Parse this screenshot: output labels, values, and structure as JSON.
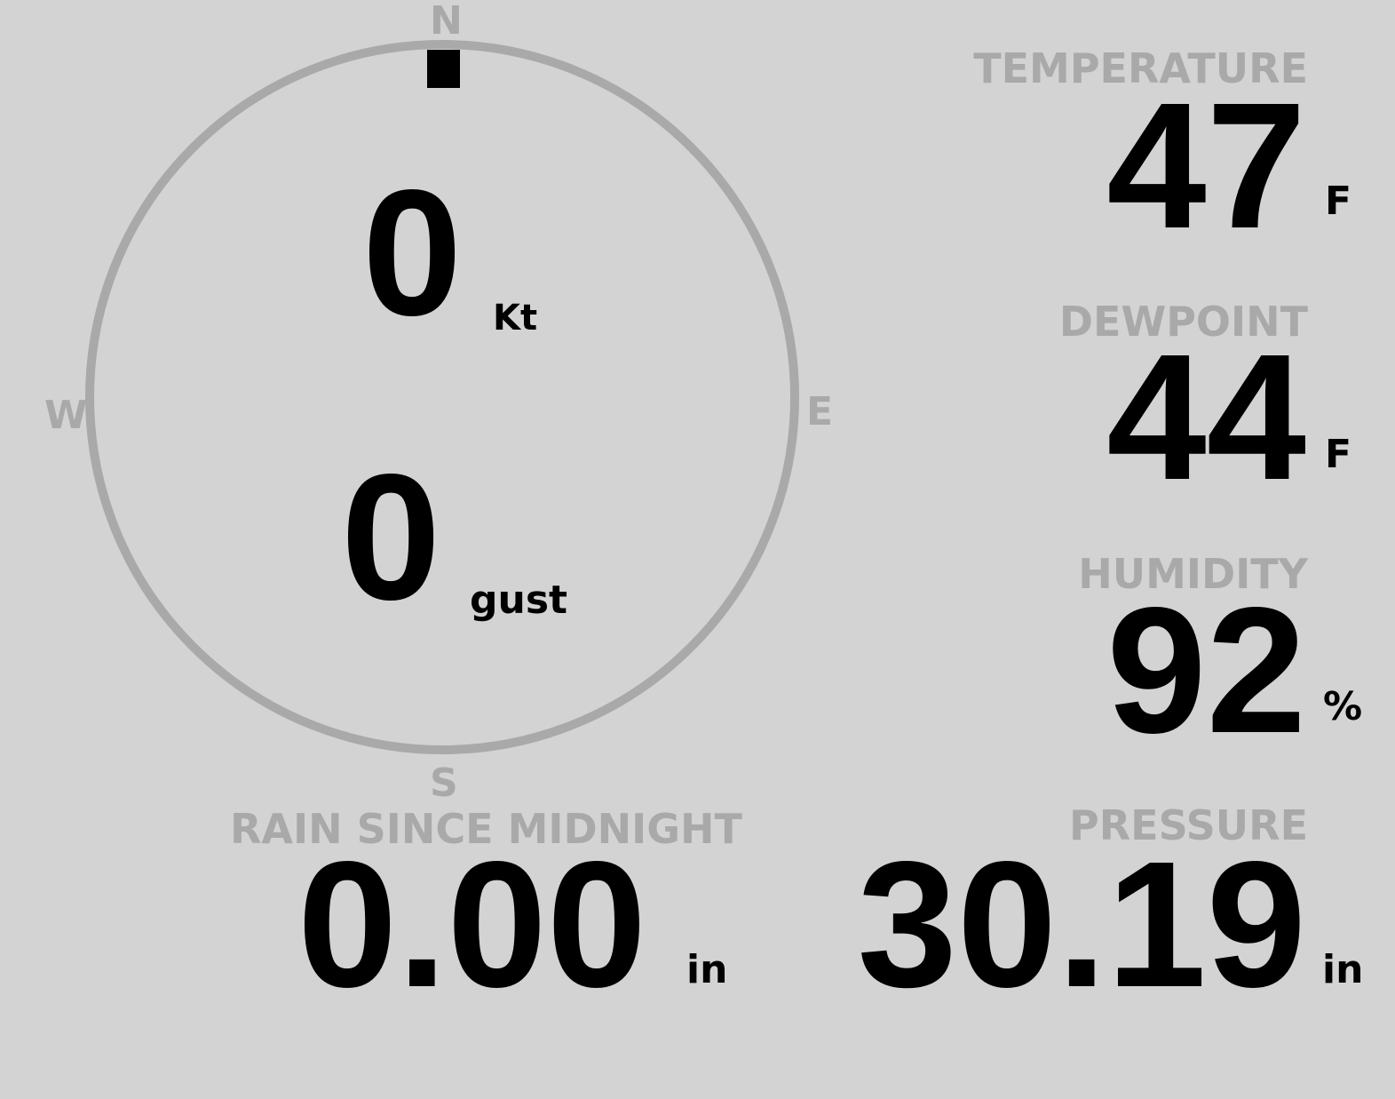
{
  "wind": {
    "speed": "0",
    "speed_unit": "Kt",
    "gust": "0",
    "gust_unit": "gust",
    "direction_deg": 0,
    "compass": {
      "n": "N",
      "e": "E",
      "s": "S",
      "w": "W"
    }
  },
  "temperature": {
    "label": "TEMPERATURE",
    "value": "47",
    "unit": "F"
  },
  "dewpoint": {
    "label": "DEWPOINT",
    "value": "44",
    "unit": "F"
  },
  "humidity": {
    "label": "HUMIDITY",
    "value": "92",
    "unit": "%"
  },
  "rain": {
    "label": "RAIN SINCE MIDNIGHT",
    "value": "0.00",
    "unit": "in"
  },
  "pressure": {
    "label": "PRESSURE",
    "value": "30.19",
    "unit": "in"
  },
  "colors": {
    "background": "#d3d3d3",
    "label": "#a9a9a9",
    "value": "#000000"
  }
}
